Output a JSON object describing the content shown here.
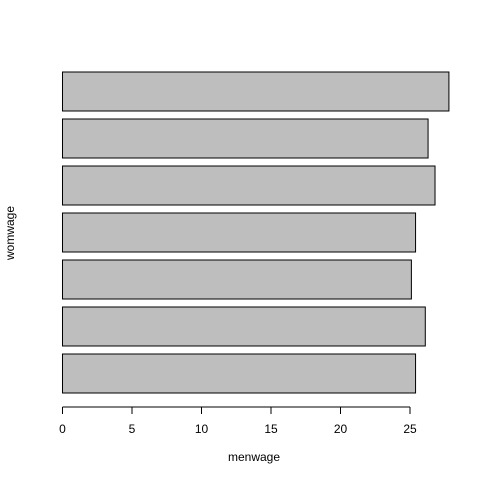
{
  "chart_data": {
    "type": "bar",
    "orientation": "horizontal",
    "xlabel": "menwage",
    "ylabel": "womwage",
    "xlim": [
      0,
      30
    ],
    "xticks": [
      0,
      5,
      10,
      15,
      20,
      25
    ],
    "values": [
      25.4,
      26.1,
      25.1,
      25.4,
      26.8,
      26.3,
      27.8
    ],
    "bar_fill": "#bebebe",
    "bar_stroke": "#000000",
    "grid": false,
    "legend": "none"
  }
}
